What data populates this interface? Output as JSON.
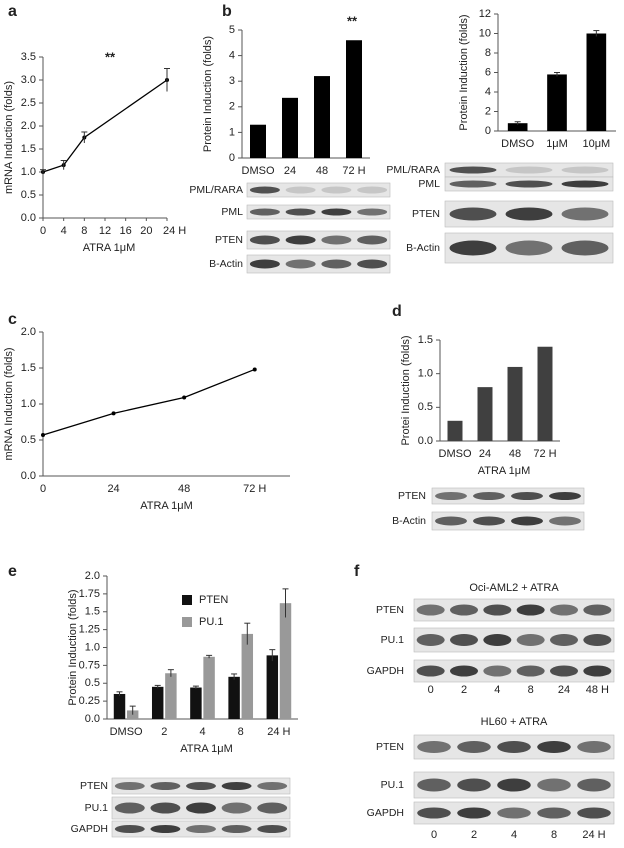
{
  "panel_letters": [
    "a",
    "b",
    "c",
    "d",
    "e",
    "f"
  ],
  "chart_data": [
    {
      "type": "line",
      "y_label": "mRNA Induction (folds)",
      "x_label": "ATRA 1μM",
      "annotation": "**",
      "x": [
        0,
        4,
        8,
        24
      ],
      "values": [
        1.0,
        1.15,
        1.75,
        3.0
      ],
      "errors": [
        0.05,
        0.1,
        0.12,
        0.25
      ],
      "color": "#000000",
      "xlim": [
        0,
        24
      ],
      "xticks": [
        0,
        4,
        8,
        12,
        16,
        20,
        {
          "value": 24,
          "label": "24 H"
        }
      ],
      "ylim": [
        0,
        3.5
      ],
      "yticks": [
        {
          "value": 0,
          "label": "0.0"
        },
        0.5,
        {
          "value": 1,
          "label": "1.0"
        },
        1.5,
        {
          "value": 2,
          "label": "2.0"
        },
        2.5,
        {
          "value": 3,
          "label": "3.0"
        },
        3.5
      ]
    },
    {
      "type": "bar",
      "y_label": "Protein Induction (folds)",
      "annotation": "**",
      "categories": [
        "DMSO",
        "24",
        "48",
        "72 H"
      ],
      "values": [
        1.3,
        2.35,
        3.2,
        4.6
      ],
      "color": "#000000",
      "ylim": [
        0,
        5
      ],
      "yticks": [
        0,
        1,
        2,
        3,
        4,
        5
      ]
    },
    {
      "type": "bar",
      "y_label": "Protein Induction (folds)",
      "categories": [
        "DMSO",
        "1μM",
        "10μM"
      ],
      "values": [
        0.8,
        5.8,
        10.0
      ],
      "errors": [
        0.15,
        0.2,
        0.3
      ],
      "color": "#000000",
      "ylim": [
        0,
        12
      ],
      "yticks": [
        0,
        2,
        4,
        6,
        8,
        10,
        12
      ]
    },
    {
      "type": "line",
      "y_label": "mRNA Induction (folds)",
      "x_label": "ATRA 1μM",
      "categories": [
        "0",
        "24",
        "48",
        "72 H"
      ],
      "values": [
        0.57,
        0.87,
        1.09,
        1.48
      ],
      "color": "#000000",
      "ylim": [
        0,
        2
      ],
      "yticks": [
        {
          "value": 0,
          "label": "0.0"
        },
        0.5,
        {
          "value": 1,
          "label": "1.0"
        },
        1.5,
        {
          "value": 2,
          "label": "2.0"
        }
      ]
    },
    {
      "type": "bar",
      "y_label": "Protei Induction (folds)",
      "x_label": "ATRA 1μM",
      "categories": [
        "DMSO",
        "24",
        "48",
        "72 H"
      ],
      "values": [
        0.3,
        0.8,
        1.1,
        1.4
      ],
      "color": "#404040",
      "ylim": [
        0,
        1.5
      ],
      "yticks": [
        {
          "value": 0,
          "label": "0.0"
        },
        0.5,
        {
          "value": 1,
          "label": "1.0"
        },
        1.5
      ]
    },
    {
      "type": "bar",
      "y_label": "Protein Induction (folds)",
      "x_label": "ATRA 1μM",
      "categories": [
        "DMSO",
        "2",
        "4",
        "8",
        "24 H"
      ],
      "series": [
        {
          "name": "PTEN",
          "color": "#111111",
          "values": [
            0.35,
            0.45,
            0.44,
            0.59,
            0.89
          ],
          "errors": [
            0.03,
            0.02,
            0.02,
            0.04,
            0.08
          ]
        },
        {
          "name": "PU.1",
          "color": "#999999",
          "values": [
            0.12,
            0.64,
            0.87,
            1.19,
            1.62
          ],
          "errors": [
            0.06,
            0.05,
            0.02,
            0.15,
            0.2
          ]
        }
      ],
      "ylim": [
        0,
        2
      ],
      "yticks": [
        {
          "value": 0,
          "label": "0.0"
        },
        0.25,
        0.5,
        0.75,
        {
          "value": 1,
          "label": "1.0"
        },
        1.25,
        1.5,
        1.75,
        {
          "value": 2,
          "label": "2.0"
        }
      ]
    }
  ],
  "blots": [
    {
      "rows": [
        "PML/RARA",
        "PML",
        "PTEN",
        "B-Actin"
      ]
    },
    {
      "rows": [
        "PML/RARA",
        "PML",
        "PTEN",
        "B-Actin"
      ]
    },
    {
      "rows": [
        "PTEN",
        "B-Actin"
      ]
    },
    {
      "rows": [
        "PTEN",
        "PU.1",
        "GAPDH"
      ]
    },
    {
      "title": "Oci-AML2 + ATRA",
      "rows": [
        "PTEN",
        "PU.1",
        "GAPDH"
      ],
      "lanes": [
        "0",
        "2",
        "4",
        "8",
        "24",
        "48 H"
      ]
    },
    {
      "title": "HL60 + ATRA",
      "rows": [
        "PTEN",
        "PU.1",
        "GAPDH"
      ],
      "lanes": [
        "0",
        "2",
        "4",
        "8",
        "24 H"
      ]
    }
  ]
}
